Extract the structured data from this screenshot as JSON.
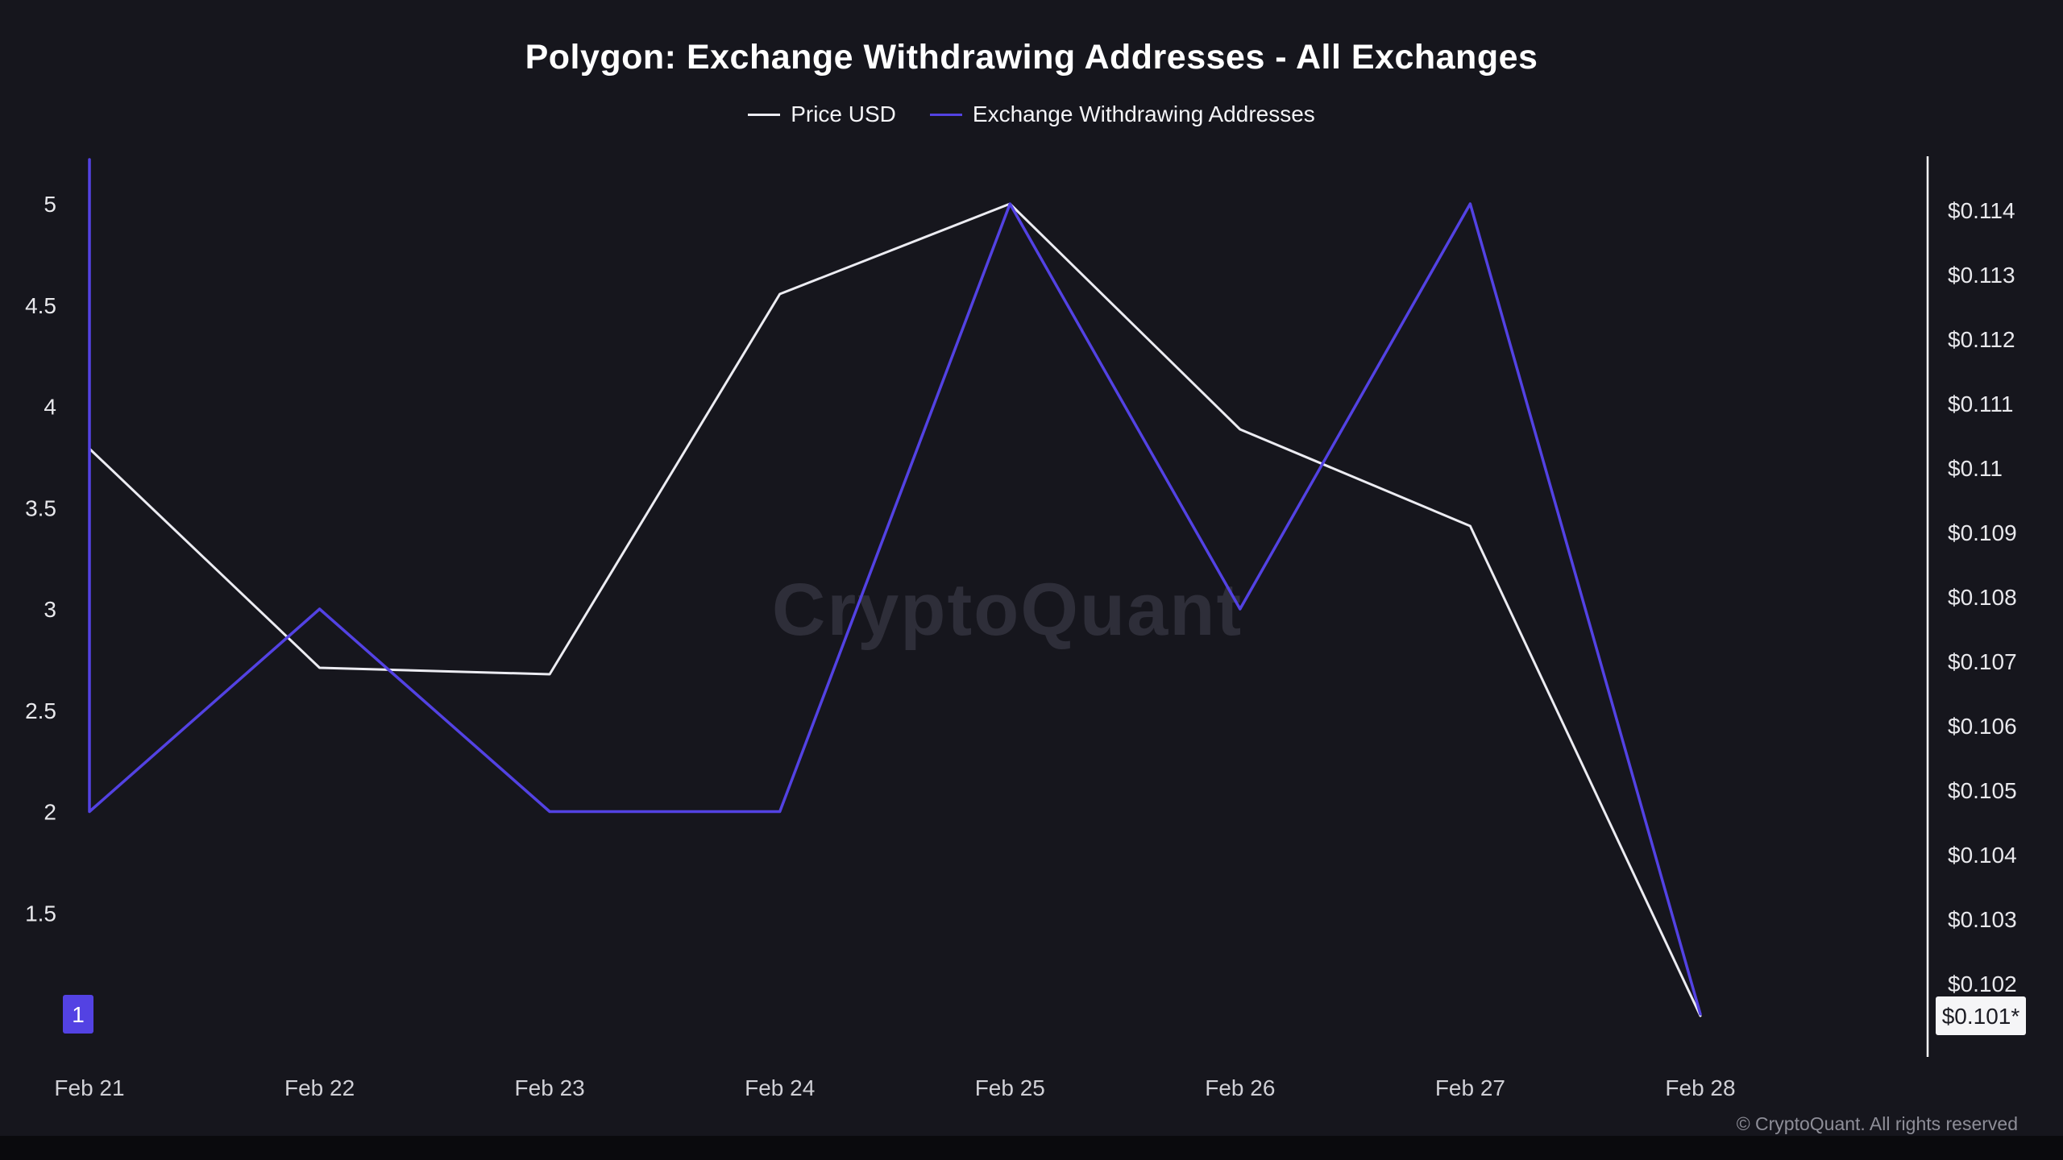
{
  "chart_data": {
    "type": "line",
    "title": "Polygon: Exchange Withdrawing Addresses - All Exchanges",
    "x": [
      "Feb 21",
      "Feb 22",
      "Feb 23",
      "Feb 24",
      "Feb 25",
      "Feb 26",
      "Feb 27",
      "Feb 28"
    ],
    "legend_position": "top",
    "grid": false,
    "legend": [
      {
        "label": "Price USD",
        "color": "#ececf2",
        "axis": "right"
      },
      {
        "label": "Exchange Withdrawing Addresses",
        "color": "#5342e3",
        "axis": "left"
      }
    ],
    "series": [
      {
        "name": "Price USD",
        "axis": "right",
        "color": "#ececf2",
        "values": [
          0.1103,
          0.1069,
          0.1068,
          0.1127,
          0.1141,
          0.1106,
          0.1091,
          0.1015
        ]
      },
      {
        "name": "Exchange Withdrawing Addresses",
        "axis": "left",
        "color": "#5342e3",
        "values": [
          2,
          3,
          2,
          2,
          5,
          3,
          5,
          1
        ],
        "enters_clipped_from_top": true
      }
    ],
    "left_axis": {
      "min": 1,
      "max": 5.35,
      "tick_values": [
        1.5,
        2,
        2.5,
        3,
        3.5,
        4,
        4.5,
        5
      ],
      "tick_labels": [
        "1.5",
        "2",
        "2.5",
        "3",
        "3.5",
        "4",
        "4.5",
        "5"
      ],
      "current_value_badge": {
        "value": 1,
        "label": "1",
        "bg": "#5342e3",
        "fg": "#ffffff"
      }
    },
    "right_axis": {
      "min": 0.101,
      "max": 0.1145,
      "tick_values": [
        0.114,
        0.113,
        0.112,
        0.111,
        0.11,
        0.109,
        0.108,
        0.107,
        0.106,
        0.105,
        0.104,
        0.103,
        0.102
      ],
      "tick_labels": [
        "$0.114",
        "$0.113",
        "$0.112",
        "$0.111",
        "$0.11",
        "$0.109",
        "$0.108",
        "$0.107",
        "$0.106",
        "$0.105",
        "$0.104",
        "$0.103",
        "$0.102"
      ],
      "current_value_badge": {
        "value": 0.1015,
        "label": "$0.101*",
        "bg": "#f5f5f7",
        "fg": "#1c1c24"
      }
    }
  },
  "watermark": "CryptoQuant",
  "footer": {
    "copyright": "© CryptoQuant. All rights reserved"
  },
  "colors": {
    "background": "#16161d",
    "title": "#ffffff",
    "axis_line": "#ffffff",
    "tick_text": "#e8e8ec",
    "x_tick_text": "#d0d0d6",
    "watermark": "#2e2e39",
    "copyright": "#8e8e98",
    "price_line": "#ececf2",
    "withdrawals_line": "#5342e3"
  }
}
